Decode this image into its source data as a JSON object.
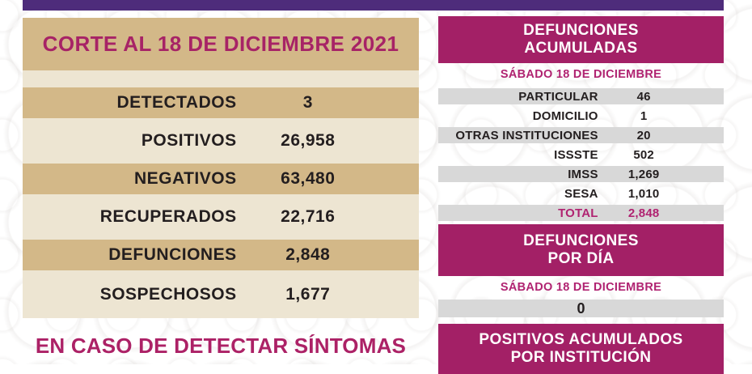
{
  "colors": {
    "top_bar_purple": "#4E2C7B",
    "header_magenta": "#A32066",
    "text_magenta": "#B02371",
    "tan": "#D3B888",
    "beige": "#EDE5D2",
    "row_gray": "#D8D8D8",
    "ink": "#231E1F"
  },
  "left_panel": {
    "title": "CORTE AL 18 DE DICIEMBRE 2021",
    "rows": [
      {
        "label": "DETECTADOS",
        "value": "3"
      },
      {
        "label": "POSITIVOS",
        "value": "26,958"
      },
      {
        "label": "NEGATIVOS",
        "value": "63,480"
      },
      {
        "label": "RECUPERADOS",
        "value": "22,716"
      },
      {
        "label": "DEFUNCIONES",
        "value": "2,848"
      },
      {
        "label": "SOSPECHOSOS",
        "value": "1,677"
      }
    ],
    "footer": "EN CASO DE DETECTAR SÍNTOMAS"
  },
  "right_panel": {
    "accumulated_deaths": {
      "header": "DEFUNCIONES\nACUMULADAS",
      "date": "SÁBADO 18 DE DICIEMBRE",
      "rows": [
        {
          "label": "PARTICULAR",
          "value": "46"
        },
        {
          "label": "DOMICILIO",
          "value": "1"
        },
        {
          "label": "OTRAS INSTITUCIONES",
          "value": "20"
        },
        {
          "label": "ISSSTE",
          "value": "502"
        },
        {
          "label": "IMSS",
          "value": "1,269"
        },
        {
          "label": "SESA",
          "value": "1,010"
        },
        {
          "label": "TOTAL",
          "value": "2,848"
        }
      ]
    },
    "daily_deaths": {
      "header": "DEFUNCIONES\nPOR DÍA",
      "date": "SÁBADO 18 DE DICIEMBRE",
      "value": "0"
    },
    "accumulated_positives": {
      "header": "POSITIVOS ACUMULADOS\nPOR INSTITUCIÓN"
    }
  }
}
